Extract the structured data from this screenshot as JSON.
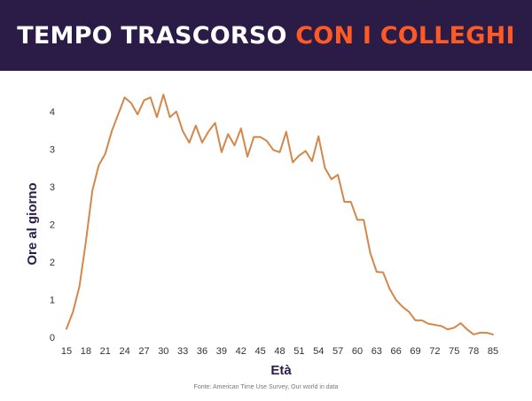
{
  "header": {
    "title_part1": "TEMPO TRASCORSO",
    "title_part2": "CON I COLLEGHI"
  },
  "source": "Fonte: American Time Use Survey, Our world in data",
  "colors": {
    "banner": "#2a1c47",
    "title_primary": "#ffffff",
    "title_accent": "#ff5a23",
    "line": "#d4874a",
    "axis_label": "#2a1c47",
    "tick": "#333333"
  },
  "chart_data": {
    "type": "line",
    "xlabel": "Età",
    "ylabel": "Ore al giorno",
    "x_ticks": [
      "15",
      "18",
      "21",
      "24",
      "27",
      "30",
      "33",
      "36",
      "39",
      "42",
      "45",
      "48",
      "51",
      "54",
      "57",
      "60",
      "63",
      "66",
      "69",
      "72",
      "75",
      "78",
      "85"
    ],
    "y_ticks": [
      "0",
      "1",
      "2",
      "2",
      "3",
      "3",
      "4"
    ],
    "ylim": [
      0,
      4
    ],
    "grid": false,
    "series": [
      {
        "values": [
          0.15,
          0.45,
          0.9,
          1.7,
          2.6,
          3.05,
          3.25,
          3.65,
          3.95,
          4.25,
          4.15,
          3.95,
          4.2,
          4.25,
          3.9,
          4.3,
          3.9,
          4.0,
          3.65,
          3.45,
          3.75,
          3.45,
          3.65,
          3.8,
          3.28,
          3.6,
          3.4,
          3.7,
          3.2,
          3.55,
          3.55,
          3.48,
          3.32,
          3.28,
          3.64,
          3.1,
          3.22,
          3.3,
          3.12,
          3.56,
          3.0,
          2.8,
          2.88,
          2.4,
          2.4,
          2.08,
          2.08,
          1.5,
          1.16,
          1.15,
          0.86,
          0.66,
          0.54,
          0.45,
          0.3,
          0.3,
          0.24,
          0.22,
          0.2,
          0.14,
          0.17,
          0.25,
          0.14,
          0.05,
          0.08,
          0.08,
          0.05
        ]
      }
    ]
  }
}
